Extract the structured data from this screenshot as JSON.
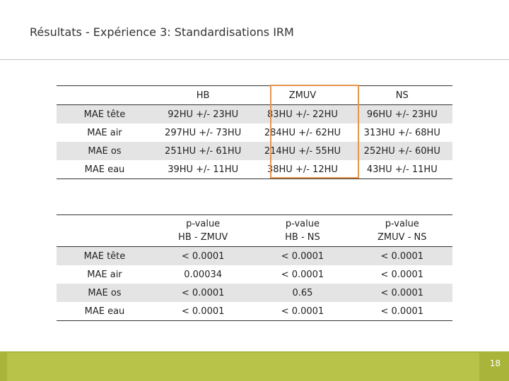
{
  "slide": {
    "title": "Résultats - Expérience 3: Standardisations IRM",
    "page_number": "18"
  },
  "mae_table": {
    "headers": [
      "",
      "HB",
      "ZMUV",
      "NS"
    ],
    "rows": [
      [
        "MAE tête",
        "92HU +/- 23HU",
        "83HU +/- 22HU",
        "96HU +/- 23HU"
      ],
      [
        "MAE air",
        "297HU +/- 73HU",
        "284HU +/- 62HU",
        "313HU +/- 68HU"
      ],
      [
        "MAE os",
        "251HU +/- 61HU",
        "214HU +/- 55HU",
        "252HU +/- 60HU"
      ],
      [
        "MAE eau",
        "39HU +/- 11HU",
        "38HU +/- 12HU",
        "43HU +/- 11HU"
      ]
    ]
  },
  "pvalue_table": {
    "headers": [
      [
        "",
        ""
      ],
      [
        "p-value",
        "HB - ZMUV"
      ],
      [
        "p-value",
        "HB - NS"
      ],
      [
        "p-value",
        "ZMUV - NS"
      ]
    ],
    "rows": [
      [
        "MAE tête",
        "< 0.0001",
        "< 0.0001",
        "< 0.0001"
      ],
      [
        "MAE air",
        "0.00034",
        "< 0.0001",
        "< 0.0001"
      ],
      [
        "MAE os",
        "< 0.0001",
        "0.65",
        "< 0.0001"
      ],
      [
        "MAE eau",
        "< 0.0001",
        "< 0.0001",
        "< 0.0001"
      ]
    ]
  },
  "colors": {
    "highlight": "#e6954f",
    "footer": "#a8b53a",
    "row_shade": "#e4e4e4"
  }
}
